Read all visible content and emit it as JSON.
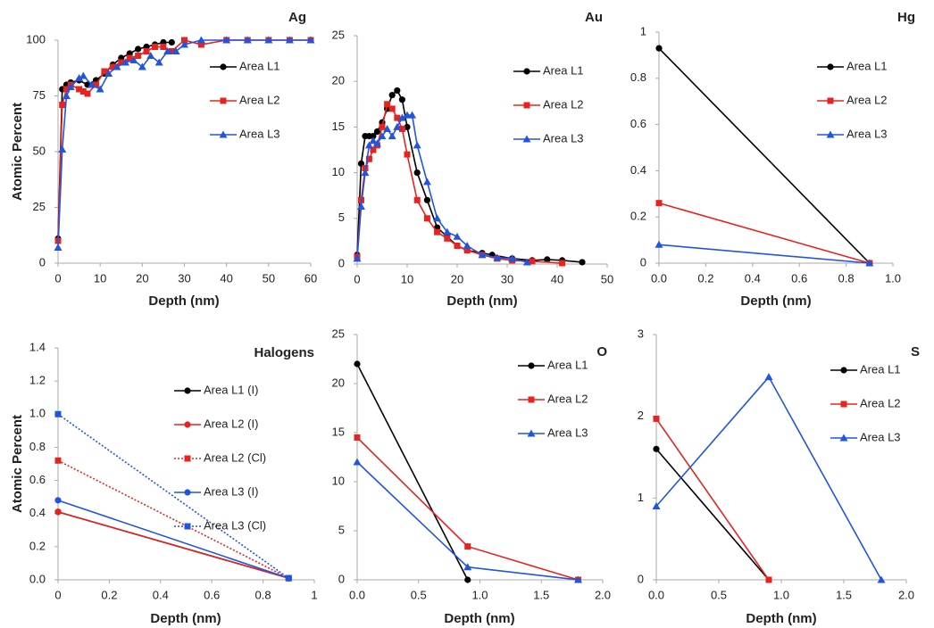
{
  "chart_data": [
    {
      "type": "line",
      "title": "Ag",
      "xlabel": "Depth (nm)",
      "ylabel": "Atomic Percent",
      "xlim": [
        0,
        60
      ],
      "xticks": [
        0,
        10,
        20,
        30,
        40,
        50,
        60
      ],
      "ylim": [
        0,
        100
      ],
      "yticks": [
        0,
        25,
        50,
        75,
        100
      ],
      "legend": "upper right",
      "series": [
        {
          "name": "Area L1",
          "color": "#000000",
          "marker": "circle",
          "x": [
            0,
            1,
            2,
            3,
            5,
            7,
            9,
            11,
            13,
            15,
            17,
            19,
            21,
            23,
            25,
            27
          ],
          "values": [
            11,
            78,
            80,
            81,
            82,
            80,
            82,
            85,
            89,
            92,
            94,
            96,
            97,
            98,
            99,
            99
          ]
        },
        {
          "name": "Area L2",
          "color": "#e8231f",
          "marker": "square",
          "x": [
            0,
            1,
            2,
            3,
            5,
            6,
            7,
            9,
            11,
            13,
            15,
            17,
            19,
            21,
            23,
            25,
            27,
            30,
            34,
            40,
            45,
            50,
            55,
            60
          ],
          "values": [
            10,
            71,
            78,
            80,
            78,
            77,
            76,
            80,
            86,
            88,
            90,
            92,
            93,
            95,
            97,
            97,
            95,
            100,
            98,
            100,
            100,
            100,
            100,
            100
          ]
        },
        {
          "name": "Area L3",
          "color": "#2155e0",
          "marker": "triangle",
          "x": [
            0,
            1,
            2,
            3,
            5,
            6,
            8,
            10,
            12,
            14,
            16,
            18,
            20,
            22,
            24,
            26,
            28,
            30,
            34,
            40,
            45,
            50,
            55,
            60
          ],
          "values": [
            7,
            51,
            75,
            79,
            83,
            84,
            80,
            78,
            85,
            88,
            90,
            91,
            88,
            93,
            90,
            95,
            95,
            98,
            100,
            100,
            100,
            100,
            100,
            100
          ]
        }
      ]
    },
    {
      "type": "line",
      "title": "Au",
      "xlabel": "Depth (nm)",
      "xlim": [
        0,
        50
      ],
      "xticks": [
        0,
        10,
        20,
        30,
        40,
        50
      ],
      "ylim": [
        0,
        25
      ],
      "yticks": [
        0,
        5,
        10,
        15,
        20,
        25
      ],
      "legend": "upper right",
      "series": [
        {
          "name": "Area L1",
          "color": "#000000",
          "marker": "circle",
          "x": [
            0,
            0.8,
            1.6,
            2.4,
            3.2,
            4,
            5,
            6,
            7,
            8,
            9,
            10,
            12,
            14,
            16,
            18,
            20,
            22,
            25,
            27,
            31,
            35,
            38,
            41,
            45
          ],
          "values": [
            1,
            11,
            14,
            14,
            14,
            14.5,
            15.5,
            17,
            18.5,
            19,
            18,
            15,
            10,
            7,
            4,
            3,
            2,
            1.5,
            1.2,
            1,
            0.6,
            0.4,
            0.5,
            0.4,
            0.2
          ]
        },
        {
          "name": "Area L2",
          "color": "#e8231f",
          "marker": "square",
          "x": [
            0,
            0.8,
            1.6,
            2.4,
            3.2,
            4,
            5,
            6,
            7,
            8,
            9,
            10,
            12,
            14,
            16,
            18,
            20,
            22,
            25,
            28,
            31,
            35,
            41
          ],
          "values": [
            0.8,
            7,
            10.5,
            11.5,
            12.5,
            13,
            15,
            17.5,
            17,
            16,
            14.8,
            12,
            7,
            5,
            3.5,
            2.8,
            2,
            1.5,
            1,
            0.6,
            0.4,
            0.3,
            0.1
          ]
        },
        {
          "name": "Area L3",
          "color": "#2155e0",
          "marker": "triangle",
          "x": [
            0,
            0.8,
            1.6,
            2.4,
            3.2,
            4,
            5,
            6,
            7,
            8,
            9,
            10,
            11,
            12,
            14,
            16,
            18,
            20,
            22,
            25,
            28,
            31,
            34
          ],
          "values": [
            0.6,
            6.3,
            10,
            13,
            13.5,
            13.2,
            14,
            14.8,
            14,
            15,
            16,
            16.3,
            16.3,
            13,
            9,
            5,
            3.5,
            3,
            2,
            1,
            0.7,
            0.6,
            0.2
          ]
        }
      ]
    },
    {
      "type": "line",
      "title": "Hg",
      "xlabel": "Depth (nm)",
      "xlim": [
        0,
        1
      ],
      "xticks": [
        {
          "value": 0,
          "label": "0.0"
        },
        0.2,
        0.4,
        0.6,
        0.8,
        {
          "value": 1,
          "label": "1.0"
        }
      ],
      "ylim": [
        0,
        1
      ],
      "yticks": [
        0,
        0.2,
        0.4,
        0.6,
        0.8,
        1
      ],
      "legend": "upper right",
      "series": [
        {
          "name": "Area L1",
          "color": "#000000",
          "marker": "circle",
          "x": [
            0,
            0.9
          ],
          "values": [
            0.93,
            0
          ]
        },
        {
          "name": "Area L2",
          "color": "#e8231f",
          "marker": "square",
          "x": [
            0,
            0.9
          ],
          "values": [
            0.26,
            0
          ]
        },
        {
          "name": "Area L3",
          "color": "#2155e0",
          "marker": "triangle",
          "x": [
            0,
            0.9
          ],
          "values": [
            0.08,
            0
          ]
        }
      ]
    },
    {
      "type": "line",
      "title": "Halogens",
      "xlabel": "Depth (nm)",
      "ylabel": "Atomic Percent",
      "xlim": [
        0,
        1
      ],
      "xticks": [
        0,
        0.2,
        0.4,
        0.6,
        0.8,
        1
      ],
      "ylim": [
        0,
        1.4
      ],
      "yticks": [
        {
          "value": 0,
          "label": "0.0"
        },
        0.2,
        0.4,
        0.6,
        0.8,
        {
          "value": 1,
          "label": "1.0"
        },
        1.2,
        1.4
      ],
      "legend": "upper right",
      "series": [
        {
          "name": "Area L1 (I)",
          "color": "#000000",
          "marker": "circle",
          "dashed": false,
          "x": [
            0,
            0.9
          ],
          "values": [
            0.41,
            0.01
          ]
        },
        {
          "name": "Area L2 (I)",
          "color": "#e8231f",
          "marker": "circle",
          "dashed": false,
          "x": [
            0,
            0.9
          ],
          "values": [
            0.41,
            0.01
          ]
        },
        {
          "name": "Area L2 (Cl)",
          "color": "#e8231f",
          "marker": "square",
          "dashed": true,
          "x": [
            0,
            0.9
          ],
          "values": [
            0.72,
            0.01
          ]
        },
        {
          "name": "Area L3 (I)",
          "color": "#2155e0",
          "marker": "circle",
          "dashed": false,
          "x": [
            0,
            0.9
          ],
          "values": [
            0.48,
            0.01
          ]
        },
        {
          "name": "Area L3 (Cl)",
          "color": "#2155e0",
          "marker": "square",
          "dashed": true,
          "x": [
            0,
            0.9
          ],
          "values": [
            1.0,
            0.01
          ]
        }
      ]
    },
    {
      "type": "line",
      "title": "O",
      "xlabel": "Depth (nm)",
      "xlim": [
        0,
        2
      ],
      "xticks": [
        {
          "value": 0,
          "label": "0.0"
        },
        0.5,
        {
          "value": 1,
          "label": "1.0"
        },
        1.5,
        {
          "value": 2,
          "label": "2.0"
        }
      ],
      "ylim": [
        0,
        25
      ],
      "yticks": [
        0,
        5,
        10,
        15,
        20,
        25
      ],
      "legend": "upper right",
      "series": [
        {
          "name": "Area L1",
          "color": "#000000",
          "marker": "circle",
          "x": [
            0,
            0.9
          ],
          "values": [
            22,
            0
          ]
        },
        {
          "name": "Area L2",
          "color": "#e8231f",
          "marker": "square",
          "x": [
            0,
            0.9,
            1.8
          ],
          "values": [
            14.5,
            3.4,
            0
          ]
        },
        {
          "name": "Area L3",
          "color": "#2155e0",
          "marker": "triangle",
          "x": [
            0,
            0.9,
            1.8
          ],
          "values": [
            12,
            1.3,
            0
          ]
        }
      ]
    },
    {
      "type": "line",
      "title": "S",
      "xlabel": "Depth (nm)",
      "xlim": [
        0,
        2
      ],
      "xticks": [
        {
          "value": 0,
          "label": "0.0"
        },
        0.5,
        {
          "value": 1,
          "label": "1.0"
        },
        1.5,
        {
          "value": 2,
          "label": "2.0"
        }
      ],
      "ylim": [
        0,
        3
      ],
      "yticks": [
        0,
        1,
        2,
        3
      ],
      "legend": "upper right",
      "series": [
        {
          "name": "Area L1",
          "color": "#000000",
          "marker": "circle",
          "x": [
            0,
            0.9
          ],
          "values": [
            1.6,
            0
          ]
        },
        {
          "name": "Area L2",
          "color": "#e8231f",
          "marker": "square",
          "x": [
            0,
            0.9
          ],
          "values": [
            1.97,
            0
          ]
        },
        {
          "name": "Area L3",
          "color": "#2155e0",
          "marker": "triangle",
          "x": [
            0,
            0.9,
            1.8
          ],
          "values": [
            0.9,
            2.48,
            0
          ]
        }
      ]
    }
  ]
}
